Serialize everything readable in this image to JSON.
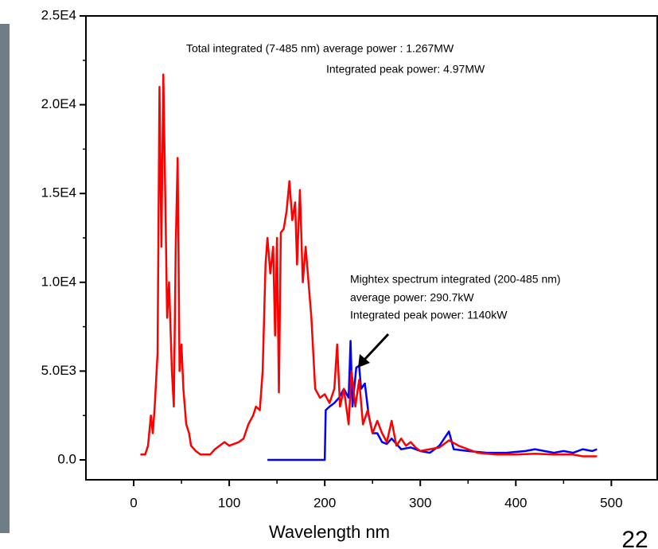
{
  "chart_data": {
    "type": "line",
    "x_label": "Wavelength nm",
    "annotations": [
      "Total integrated (7-485 nm) average power : 1.267MW",
      "Integrated peak power: 4.97MW",
      "Mightex spectrum integrated (200-485 nm)",
      "average power:  290.7kW",
      "Integrated peak power: 1140kW"
    ],
    "page_number": "22",
    "xlim": [
      -50,
      548
    ],
    "ylim": [
      -1120,
      25000
    ],
    "xticks": [
      0,
      100,
      200,
      300,
      400,
      500
    ],
    "yticks": [
      {
        "value": 0,
        "label": "0.0"
      },
      {
        "value": 5000,
        "label": "5.0E3"
      },
      {
        "value": 10000,
        "label": "1.0E4"
      },
      {
        "value": 15000,
        "label": "1.5E4"
      },
      {
        "value": 20000,
        "label": "2.0E4"
      },
      {
        "value": 25000,
        "label": "2.5E4"
      }
    ],
    "series": [
      {
        "color": "#ff0000",
        "x": [
          7,
          12,
          15,
          18,
          20,
          22,
          25,
          27,
          29,
          31,
          33,
          35,
          37,
          40,
          42,
          44,
          46,
          48,
          50,
          52,
          55,
          58,
          60,
          65,
          70,
          75,
          80,
          85,
          90,
          95,
          100,
          105,
          110,
          115,
          120,
          125,
          128,
          132,
          135,
          138,
          140,
          143,
          146,
          148,
          150,
          152,
          154,
          157,
          160,
          163,
          166,
          169,
          171,
          174,
          177,
          180,
          183,
          186,
          190,
          195,
          200,
          205,
          210,
          213,
          216,
          220,
          225,
          228,
          232,
          236,
          240,
          245,
          250,
          255,
          260,
          265,
          270,
          275,
          280,
          285,
          290,
          295,
          300,
          310,
          320,
          330,
          340,
          350,
          360,
          380,
          400,
          420,
          440,
          460,
          470,
          485
        ],
        "values": [
          300,
          300,
          800,
          2500,
          1500,
          3000,
          6000,
          21000,
          12000,
          21700,
          15000,
          8000,
          10000,
          5000,
          3000,
          12000,
          17000,
          5000,
          6500,
          4000,
          2000,
          1500,
          800,
          500,
          300,
          300,
          300,
          600,
          800,
          1000,
          800,
          900,
          1000,
          1200,
          2000,
          2500,
          3000,
          2800,
          5000,
          11000,
          12500,
          10500,
          12000,
          7000,
          12500,
          3800,
          12800,
          13000,
          14000,
          15700,
          13500,
          14500,
          11000,
          15200,
          10000,
          12000,
          10000,
          8000,
          4000,
          3500,
          3700,
          3200,
          4000,
          6500,
          3000,
          4000,
          2000,
          5000,
          3000,
          4500,
          2000,
          2800,
          1500,
          2200,
          1500,
          1000,
          2200,
          800,
          1200,
          800,
          1000,
          700,
          500,
          600,
          700,
          1100,
          800,
          600,
          400,
          300,
          300,
          350,
          300,
          300,
          200,
          200
        ]
      },
      {
        "color": "#0000ff",
        "x": [
          140,
          200,
          201,
          205,
          210,
          215,
          220,
          225,
          227,
          229,
          233,
          236,
          238,
          242,
          246,
          250,
          255,
          260,
          265,
          270,
          280,
          290,
          300,
          310,
          320,
          330,
          335,
          350,
          370,
          390,
          410,
          420,
          430,
          440,
          450,
          460,
          470,
          480,
          485
        ],
        "values": [
          0,
          0,
          2800,
          3000,
          3200,
          3500,
          4000,
          3500,
          6700,
          3000,
          5200,
          5300,
          4000,
          4300,
          2500,
          1500,
          1500,
          1000,
          900,
          1200,
          600,
          700,
          500,
          400,
          800,
          1600,
          600,
          500,
          400,
          400,
          500,
          600,
          500,
          400,
          500,
          400,
          600,
          500,
          600
        ]
      }
    ]
  }
}
